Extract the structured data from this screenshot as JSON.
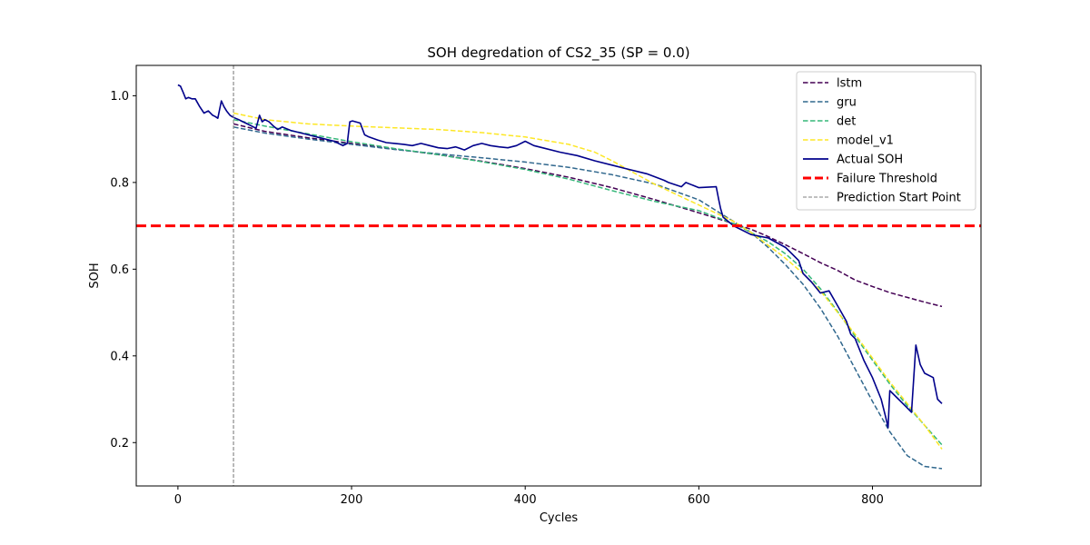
{
  "chart_data": {
    "type": "line",
    "title": "SOH degredation of CS2_35 (SP = 0.0)",
    "xlabel": "Cycles",
    "ylabel": "SOH",
    "xlim": [
      -48,
      925
    ],
    "ylim": [
      0.1,
      1.07
    ],
    "xticks": [
      0,
      200,
      400,
      600,
      800
    ],
    "xtick_labels": [
      "0",
      "200",
      "400",
      "600",
      "800"
    ],
    "yticks": [
      0.2,
      0.4,
      0.6,
      0.8,
      1.0
    ],
    "ytick_labels": [
      "0.2",
      "0.4",
      "0.6",
      "0.8",
      "1.0"
    ],
    "grid": false,
    "legend_position": "top-right",
    "series": [
      {
        "name": "lstm",
        "color": "#440154",
        "style": "dashed",
        "x": [
          64,
          100,
          150,
          200,
          250,
          300,
          350,
          400,
          450,
          500,
          550,
          600,
          640,
          660,
          680,
          700,
          720,
          740,
          760,
          780,
          800,
          820,
          840,
          860,
          880
        ],
        "y": [
          0.935,
          0.918,
          0.903,
          0.89,
          0.877,
          0.864,
          0.849,
          0.832,
          0.812,
          0.788,
          0.76,
          0.73,
          0.705,
          0.692,
          0.675,
          0.656,
          0.636,
          0.615,
          0.597,
          0.575,
          0.56,
          0.546,
          0.535,
          0.524,
          0.514
        ]
      },
      {
        "name": "gru",
        "color": "#31688e",
        "style": "dashed",
        "x": [
          64,
          100,
          150,
          200,
          250,
          300,
          350,
          400,
          450,
          500,
          550,
          600,
          640,
          660,
          680,
          700,
          720,
          740,
          760,
          780,
          800,
          820,
          840,
          860,
          880
        ],
        "y": [
          0.928,
          0.914,
          0.9,
          0.888,
          0.876,
          0.866,
          0.857,
          0.847,
          0.835,
          0.818,
          0.796,
          0.76,
          0.71,
          0.685,
          0.65,
          0.61,
          0.565,
          0.51,
          0.445,
          0.37,
          0.295,
          0.225,
          0.17,
          0.145,
          0.14
        ]
      },
      {
        "name": "det",
        "color": "#35b779",
        "style": "dashed",
        "x": [
          64,
          100,
          150,
          200,
          250,
          300,
          350,
          400,
          450,
          500,
          550,
          600,
          640,
          660,
          680,
          700,
          720,
          740,
          760,
          780,
          800,
          820,
          840,
          860,
          880
        ],
        "y": [
          0.945,
          0.93,
          0.912,
          0.894,
          0.878,
          0.864,
          0.848,
          0.83,
          0.808,
          0.781,
          0.756,
          0.735,
          0.705,
          0.685,
          0.663,
          0.635,
          0.6,
          0.555,
          0.502,
          0.445,
          0.39,
          0.335,
          0.285,
          0.24,
          0.195
        ]
      },
      {
        "name": "model_v1",
        "color": "#fde725",
        "style": "dashed",
        "x": [
          64,
          100,
          150,
          200,
          250,
          300,
          350,
          400,
          450,
          480,
          500,
          550,
          600,
          640,
          660,
          680,
          700,
          720,
          740,
          760,
          780,
          800,
          820,
          840,
          860,
          880
        ],
        "y": [
          0.96,
          0.945,
          0.935,
          0.93,
          0.926,
          0.922,
          0.915,
          0.905,
          0.888,
          0.87,
          0.85,
          0.795,
          0.748,
          0.71,
          0.685,
          0.655,
          0.625,
          0.59,
          0.55,
          0.5,
          0.45,
          0.395,
          0.34,
          0.29,
          0.24,
          0.185
        ]
      },
      {
        "name": "Actual SOH",
        "color": "#00008b",
        "style": "solid",
        "x": [
          0,
          3,
          6,
          9,
          12,
          16,
          20,
          25,
          30,
          35,
          40,
          43,
          46,
          50,
          53,
          56,
          60,
          64,
          70,
          75,
          80,
          85,
          90,
          94,
          97,
          100,
          105,
          110,
          115,
          120,
          130,
          140,
          150,
          160,
          170,
          180,
          190,
          195,
          198,
          201,
          210,
          215,
          220,
          230,
          240,
          250,
          260,
          270,
          280,
          290,
          300,
          310,
          320,
          330,
          340,
          350,
          360,
          370,
          380,
          390,
          400,
          410,
          420,
          440,
          460,
          480,
          500,
          520,
          540,
          560,
          565,
          580,
          585,
          600,
          620,
          623,
          625,
          628,
          640,
          660,
          680,
          700,
          715,
          720,
          730,
          740,
          750,
          760,
          770,
          775,
          780,
          790,
          800,
          810,
          815,
          818,
          820,
          830,
          840,
          845,
          850,
          855,
          860,
          870,
          875,
          880
        ],
        "y": [
          1.025,
          1.022,
          1.008,
          0.993,
          0.996,
          0.993,
          0.993,
          0.975,
          0.96,
          0.965,
          0.955,
          0.952,
          0.948,
          0.988,
          0.975,
          0.965,
          0.955,
          0.95,
          0.945,
          0.94,
          0.935,
          0.93,
          0.925,
          0.955,
          0.94,
          0.945,
          0.94,
          0.93,
          0.922,
          0.928,
          0.92,
          0.915,
          0.91,
          0.905,
          0.9,
          0.895,
          0.885,
          0.89,
          0.94,
          0.942,
          0.937,
          0.91,
          0.905,
          0.898,
          0.892,
          0.89,
          0.888,
          0.885,
          0.89,
          0.885,
          0.88,
          0.878,
          0.882,
          0.875,
          0.885,
          0.89,
          0.885,
          0.882,
          0.88,
          0.885,
          0.895,
          0.885,
          0.88,
          0.87,
          0.862,
          0.85,
          0.84,
          0.83,
          0.82,
          0.805,
          0.8,
          0.79,
          0.8,
          0.788,
          0.79,
          0.76,
          0.74,
          0.72,
          0.7,
          0.68,
          0.672,
          0.65,
          0.62,
          0.59,
          0.57,
          0.545,
          0.55,
          0.515,
          0.48,
          0.45,
          0.44,
          0.39,
          0.35,
          0.3,
          0.26,
          0.235,
          0.32,
          0.3,
          0.28,
          0.27,
          0.425,
          0.38,
          0.36,
          0.35,
          0.3,
          0.29
        ]
      }
    ],
    "reference_lines": [
      {
        "name": "Failure Threshold",
        "orientation": "horizontal",
        "value": 0.7,
        "color": "#ff0000",
        "style": "dashed"
      },
      {
        "name": "Prediction Start Point",
        "orientation": "vertical",
        "value": 64,
        "color": "#808080",
        "style": "dashed"
      }
    ]
  }
}
